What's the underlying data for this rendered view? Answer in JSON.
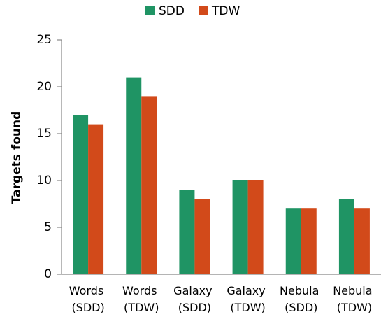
{
  "chart_data": {
    "type": "bar",
    "y_label": "Targets found",
    "categories": [
      "Words (SDD)",
      "Words (TDW)",
      "Galaxy (SDD)",
      "Galaxy (TDW)",
      "Nebula (SDD)",
      "Nebula (TDW)"
    ],
    "series": [
      {
        "name": "SDD",
        "color": "#1f9464",
        "values": [
          17,
          21,
          9,
          10,
          7,
          8
        ]
      },
      {
        "name": "TDW",
        "color": "#d24a1a",
        "values": [
          16,
          19,
          8,
          10,
          7,
          7
        ]
      }
    ],
    "ylim": [
      0,
      25
    ],
    "yticks": [
      0,
      5,
      10,
      15,
      20,
      25
    ],
    "grid": false,
    "legend": "top"
  }
}
